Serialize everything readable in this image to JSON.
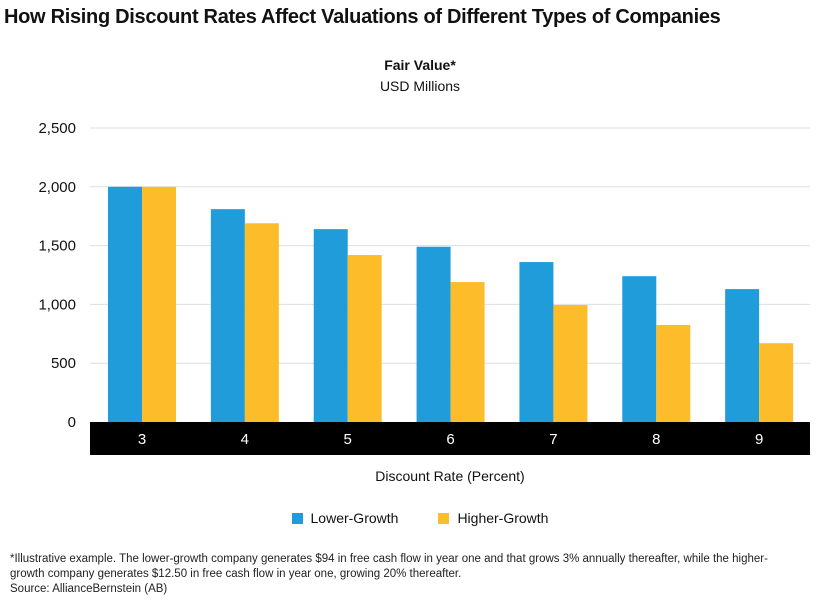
{
  "chart_data": {
    "type": "bar",
    "title": "How Rising Discount Rates Affect Valuations of Different Types of Companies",
    "subtitle": "Fair Value*",
    "unit": "USD Millions",
    "xlabel": "Discount Rate (Percent)",
    "ylabel": "",
    "categories": [
      "3",
      "4",
      "5",
      "6",
      "7",
      "8",
      "9"
    ],
    "series": [
      {
        "name": "Lower-Growth",
        "color": "#209cda",
        "values": [
          2000,
          1810,
          1640,
          1490,
          1360,
          1240,
          1130
        ]
      },
      {
        "name": "Higher-Growth",
        "color": "#fdbd2b",
        "values": [
          2000,
          1690,
          1420,
          1190,
          995,
          825,
          670
        ]
      }
    ],
    "ylim": [
      0,
      2500
    ],
    "yticks": [
      0,
      500,
      1000,
      1500,
      2000,
      2500
    ],
    "ytick_labels": [
      "0",
      "500",
      "1,000",
      "1,500",
      "2,000",
      "2,500"
    ],
    "grid": true,
    "legend": "bottom-center"
  },
  "footnote": "*Illustrative example. The lower-growth company generates $94 in free cash flow in year one and that grows 3% annually thereafter, while the higher-growth company generates $12.50 in free cash flow in year one, growing 20% thereafter.",
  "source": "Source: AllianceBernstein (AB)"
}
